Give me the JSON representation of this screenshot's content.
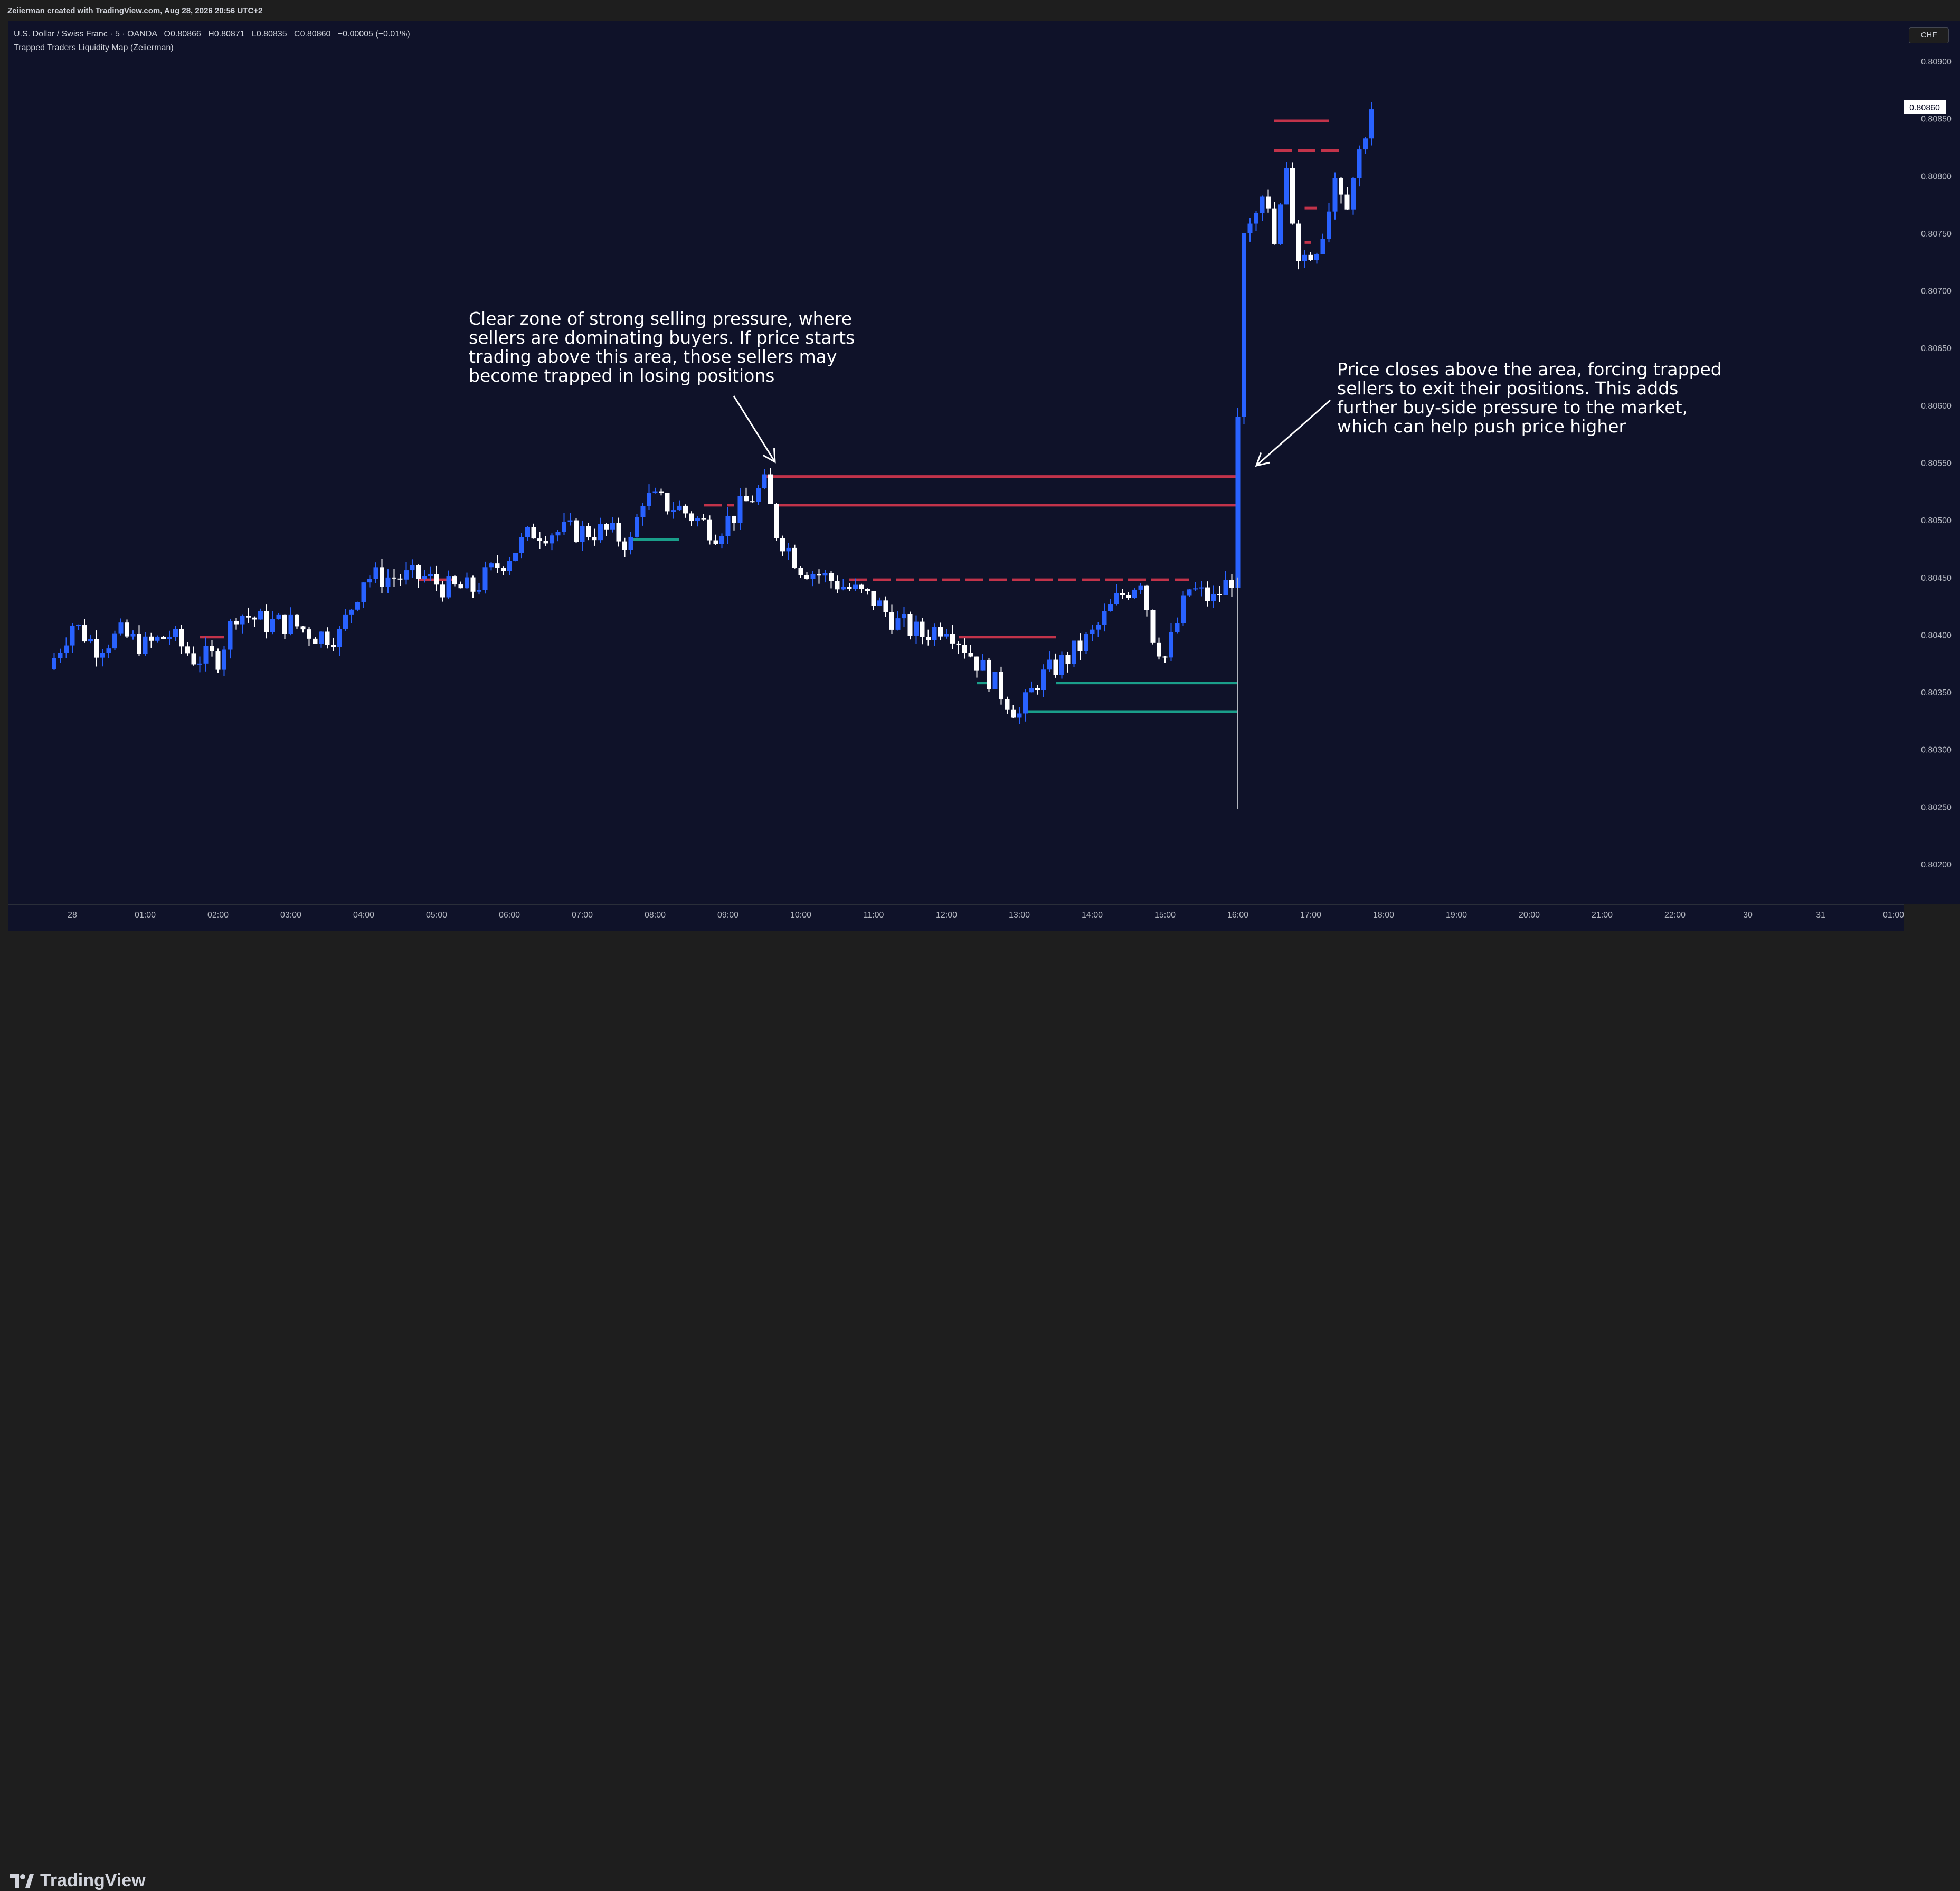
{
  "header": {
    "credit": "Zeiierman created with TradingView.com, Aug 28, 2026 20:56 UTC+2"
  },
  "legend": {
    "symbol": "U.S. Dollar / Swiss Franc · 5 · OANDA",
    "open_label": "O",
    "open": "0.80866",
    "high_label": "H",
    "high": "0.80871",
    "low_label": "L",
    "low": "0.80835",
    "close_label": "C",
    "close": "0.80860",
    "change": "−0.00005 (−0.01%)",
    "indicator": "Trapped Traders Liquidity Map (Zeiierman)"
  },
  "currency_badge": "CHF",
  "annotations": {
    "left": "Clear zone of strong selling pressure, where\nsellers are dominating buyers. If price starts\ntrading above this area, those sellers may\nbecome trapped in losing positions",
    "right": "Price closes above the area, forcing trapped\nsellers to exit their positions. This adds\nfurther buy-side pressure to the market,\nwhich can help push price higher"
  },
  "brand": {
    "name": "TradingView"
  },
  "colors": {
    "background": "#0f1229",
    "bull": "#2962ff",
    "bear": "#ffffff",
    "sell_zone": "#c2334a",
    "buy_zone": "#1a9e8a",
    "last_price_badge": "#ffffff"
  },
  "chart_data": {
    "type": "candlestick",
    "symbol": "USDCHF",
    "timeframe": "5",
    "ylim": [
      0.80165,
      0.80935
    ],
    "y_ticks": [
      "0.80900",
      "0.80850",
      "0.80800",
      "0.80750",
      "0.80700",
      "0.80650",
      "0.80600",
      "0.80550",
      "0.80500",
      "0.80450",
      "0.80400",
      "0.80350",
      "0.80300",
      "0.80250",
      "0.80200"
    ],
    "x_ticks": [
      "28",
      "01:00",
      "02:00",
      "03:00",
      "04:00",
      "05:00",
      "06:00",
      "07:00",
      "08:00",
      "09:00",
      "10:00",
      "11:00",
      "12:00",
      "13:00",
      "14:00",
      "15:00",
      "16:00",
      "17:00",
      "18:00",
      "19:00",
      "20:00",
      "21:00",
      "22:00",
      "30",
      "31",
      "01:00"
    ],
    "last_price": "0.80860",
    "close_path": [
      [
        "23:40",
        0.8037
      ],
      [
        "00:00",
        0.8041
      ],
      [
        "00:20",
        0.8039
      ],
      [
        "00:40",
        0.804
      ],
      [
        "01:00",
        0.8039
      ],
      [
        "01:20",
        0.804
      ],
      [
        "01:40",
        0.8038
      ],
      [
        "02:00",
        0.8038
      ],
      [
        "02:15",
        0.8042
      ],
      [
        "02:40",
        0.8041
      ],
      [
        "03:00",
        0.8041
      ],
      [
        "03:20",
        0.804
      ],
      [
        "03:40",
        0.804
      ],
      [
        "04:00",
        0.8045
      ],
      [
        "04:30",
        0.8045
      ],
      [
        "04:50",
        0.8045
      ],
      [
        "05:10",
        0.8044
      ],
      [
        "05:30",
        0.8044
      ],
      [
        "05:50",
        0.8046
      ],
      [
        "06:20",
        0.8049
      ],
      [
        "06:50",
        0.8049
      ],
      [
        "07:20",
        0.8049
      ],
      [
        "07:40",
        0.8048
      ],
      [
        "07:50",
        0.8052
      ],
      [
        "08:20",
        0.8051
      ],
      [
        "08:50",
        0.8049
      ],
      [
        "09:10",
        0.8051
      ],
      [
        "09:30",
        0.8053
      ],
      [
        "09:40",
        0.8049
      ],
      [
        "10:00",
        0.8046
      ],
      [
        "10:20",
        0.8045
      ],
      [
        "10:40",
        0.8044
      ],
      [
        "11:00",
        0.8043
      ],
      [
        "11:20",
        0.8041
      ],
      [
        "11:40",
        0.804
      ],
      [
        "12:00",
        0.8041
      ],
      [
        "12:15",
        0.8039
      ],
      [
        "12:30",
        0.8037
      ],
      [
        "12:45",
        0.8035
      ],
      [
        "13:00",
        0.8033
      ],
      [
        "13:15",
        0.8036
      ],
      [
        "13:40",
        0.8038
      ],
      [
        "14:00",
        0.804
      ],
      [
        "14:20",
        0.8043
      ],
      [
        "14:40",
        0.8045
      ],
      [
        "14:50",
        0.804
      ],
      [
        "15:00",
        0.8038
      ],
      [
        "15:20",
        0.8044
      ],
      [
        "15:40",
        0.8043
      ],
      [
        "15:55",
        0.8045
      ],
      [
        "16:00",
        0.8059
      ],
      [
        "16:05",
        0.8075
      ],
      [
        "16:20",
        0.8079
      ],
      [
        "16:30",
        0.8074
      ],
      [
        "16:40",
        0.808
      ],
      [
        "16:50",
        0.8073
      ],
      [
        "17:00",
        0.8073
      ],
      [
        "17:10",
        0.8075
      ],
      [
        "17:20",
        0.808
      ],
      [
        "17:30",
        0.8078
      ],
      [
        "17:40",
        0.8082
      ],
      [
        "17:50",
        0.8086
      ]
    ],
    "spike_low": 0.80248,
    "zones": [
      {
        "kind": "sell",
        "price": 0.80538,
        "from": "09:30",
        "to": "16:00",
        "style": "solid"
      },
      {
        "kind": "sell",
        "price": 0.80513,
        "from": "09:40",
        "to": "16:00",
        "style": "solid"
      },
      {
        "kind": "sell",
        "price": 0.80513,
        "from": "08:40",
        "to": "09:05",
        "style": "dashed"
      },
      {
        "kind": "sell",
        "price": 0.80448,
        "from": "10:40",
        "to": "15:20",
        "style": "dashed"
      },
      {
        "kind": "sell",
        "price": 0.80448,
        "from": "04:45",
        "to": "05:15",
        "style": "solid"
      },
      {
        "kind": "sell",
        "price": 0.80398,
        "from": "01:45",
        "to": "02:05",
        "style": "solid"
      },
      {
        "kind": "sell",
        "price": 0.80398,
        "from": "12:10",
        "to": "13:30",
        "style": "solid"
      },
      {
        "kind": "sell",
        "price": 0.80848,
        "from": "16:30",
        "to": "17:15",
        "style": "solid"
      },
      {
        "kind": "sell",
        "price": 0.80822,
        "from": "16:30",
        "to": "17:25",
        "style": "dashed"
      },
      {
        "kind": "sell",
        "price": 0.80772,
        "from": "16:55",
        "to": "17:05",
        "style": "solid"
      },
      {
        "kind": "sell",
        "price": 0.80742,
        "from": "16:55",
        "to": "17:00",
        "style": "solid"
      },
      {
        "kind": "buy",
        "price": 0.80483,
        "from": "07:40",
        "to": "08:20",
        "style": "solid"
      },
      {
        "kind": "buy",
        "price": 0.80358,
        "from": "13:30",
        "to": "16:00",
        "style": "solid"
      },
      {
        "kind": "buy",
        "price": 0.80333,
        "from": "13:05",
        "to": "16:00",
        "style": "solid"
      },
      {
        "kind": "buy",
        "price": 0.80358,
        "from": "12:25",
        "to": "12:35",
        "style": "solid"
      }
    ]
  }
}
